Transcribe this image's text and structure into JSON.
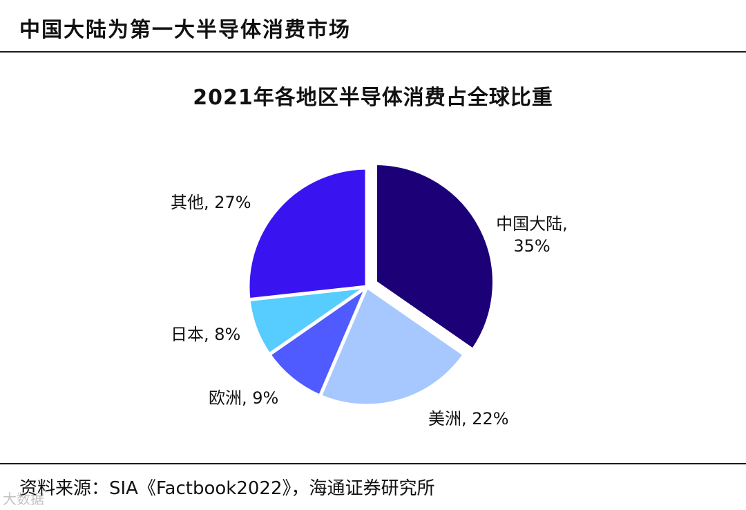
{
  "header": {
    "title": "中国大陆为第一大半导体消费市场"
  },
  "chart_data": {
    "type": "pie",
    "title": "2021年各地区半导体消费占全球比重",
    "slices": [
      {
        "name": "中国大陆",
        "value": 35,
        "label_line1": "中国大陆,",
        "label_line2": "35%",
        "color": "#1c0078",
        "explode": true
      },
      {
        "name": "美洲",
        "value": 22,
        "label_line1": "美洲, 22%",
        "label_line2": "",
        "color": "#a6c8ff",
        "explode": false
      },
      {
        "name": "欧洲",
        "value": 9,
        "label_line1": "欧洲, 9%",
        "label_line2": "",
        "color": "#4f5bff",
        "explode": false
      },
      {
        "name": "日本",
        "value": 8,
        "label_line1": "日本, 8%",
        "label_line2": "",
        "color": "#57ccff",
        "explode": false
      },
      {
        "name": "其他",
        "value": 27,
        "label_line1": "其他, 27%",
        "label_line2": "",
        "color": "#3a14f0",
        "explode": false
      }
    ]
  },
  "footer": {
    "source": "资料来源：SIA《Factbook2022》，海通证券研究所",
    "watermark": "大数据"
  }
}
